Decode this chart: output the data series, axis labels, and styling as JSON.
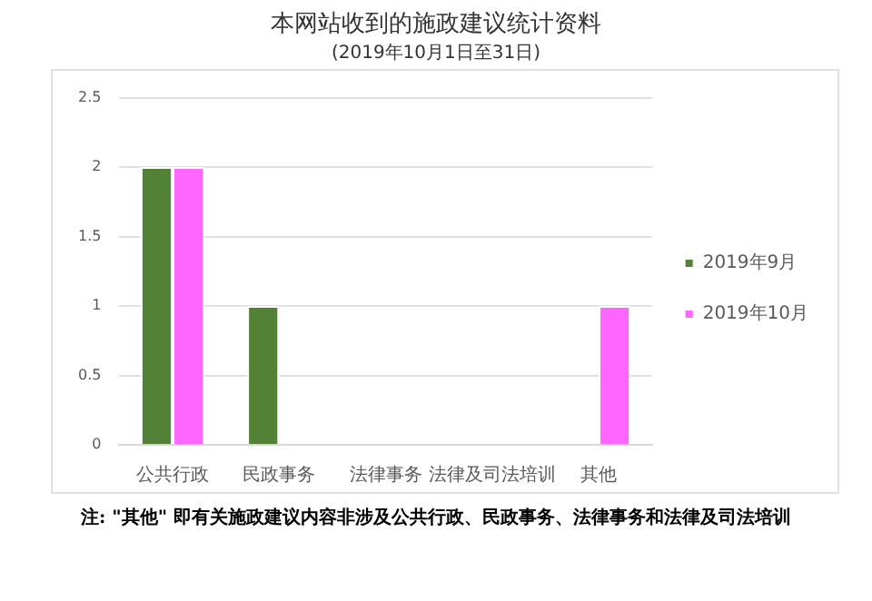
{
  "chart_data": {
    "type": "bar",
    "title": "本网站收到的施政建议统计资料",
    "subtitle": "(2019年10月1日至31日)",
    "categories": [
      "公共行政",
      "民政事务",
      "法律事务",
      "法律及司法培训",
      "其他"
    ],
    "series": [
      {
        "name": "2019年9月",
        "color": "#538135",
        "values": [
          2,
          1,
          0,
          0,
          0
        ]
      },
      {
        "name": "2019年10月",
        "color": "#ff66ff",
        "values": [
          2,
          0,
          0,
          0,
          1
        ]
      }
    ],
    "ylim": [
      0,
      2.5
    ],
    "yticks": [
      0,
      0.5,
      1,
      1.5,
      2,
      2.5
    ],
    "grid": "y",
    "legend": "right",
    "annotations": [
      "注: \"其他\" 即有关施政建议内容非涉及公共行政、民政事务、法律事务和法律及司法培训"
    ]
  }
}
